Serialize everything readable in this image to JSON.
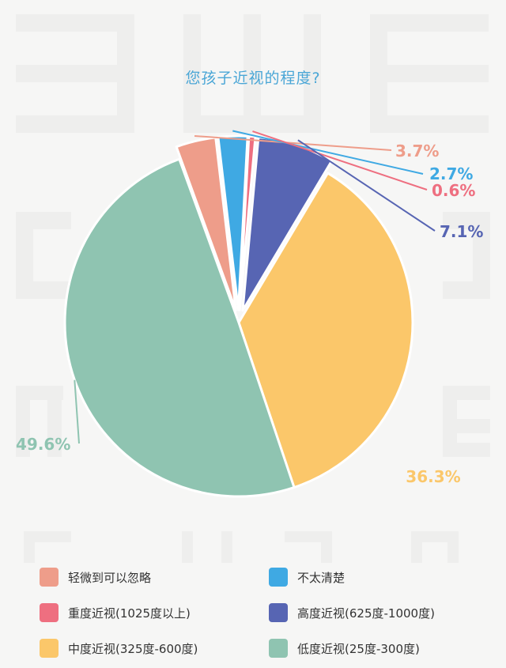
{
  "chart_data": {
    "type": "pie",
    "title": "您孩子近视的程度?",
    "slices": [
      {
        "name": "轻微到可以忽略",
        "value": 3.7,
        "label": "3.7%",
        "color": "#ee9d8a"
      },
      {
        "name": "不太清楚",
        "value": 2.7,
        "label": "2.7%",
        "color": "#3fa9e3"
      },
      {
        "name": "重度近视(1025度以上)",
        "value": 0.6,
        "label": "0.6%",
        "color": "#ee6f80"
      },
      {
        "name": "高度近视(625度-1000度)",
        "value": 7.1,
        "label": "7.1%",
        "color": "#5765b3"
      },
      {
        "name": "中度近视(325度-600度)",
        "value": 36.3,
        "label": "36.3%",
        "color": "#fbc76a"
      },
      {
        "name": "低度近视(25度-300度)",
        "value": 49.6,
        "label": "49.6%",
        "color": "#8fc4b1"
      }
    ],
    "legend": {
      "placement": "bottom",
      "items": [
        {
          "label": "轻微到可以忽略",
          "color": "#ee9d8a"
        },
        {
          "label": "不太清楚",
          "color": "#3fa9e3"
        },
        {
          "label": "重度近视(1025度以上)",
          "color": "#ee6f80"
        },
        {
          "label": "高度近视(625度-1000度)",
          "color": "#5765b3"
        },
        {
          "label": "中度近视(325度-600度)",
          "color": "#fbc76a"
        },
        {
          "label": "低度近视(25度-300度)",
          "color": "#8fc4b1"
        }
      ]
    }
  }
}
